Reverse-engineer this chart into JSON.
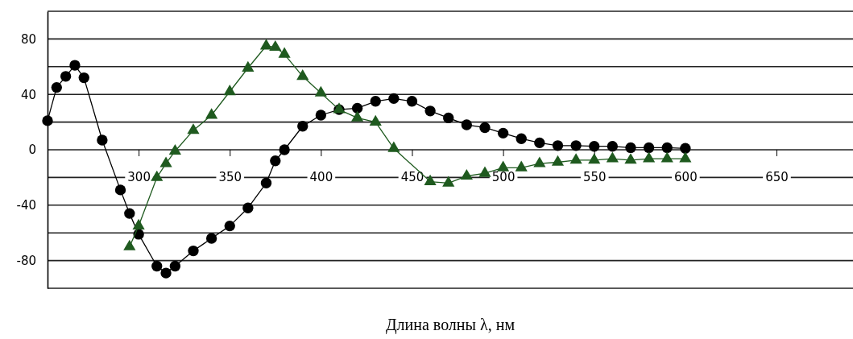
{
  "chart_data": {
    "type": "line",
    "xlabel": "Длина волны λ, нм",
    "xlim": [
      250,
      692
    ],
    "ylim": [
      -100,
      100
    ],
    "xticks": [
      300,
      350,
      400,
      450,
      500,
      550,
      600,
      650
    ],
    "yticks": [
      {
        "value": -100,
        "label": null
      },
      {
        "value": -80,
        "label": "-80"
      },
      {
        "value": -60,
        "label": null
      },
      {
        "value": -40,
        "label": "-40"
      },
      {
        "value": -20,
        "label": null
      },
      0,
      {
        "value": 20,
        "label": null
      },
      40,
      {
        "value": 60,
        "label": null
      },
      80,
      {
        "value": 100,
        "label": null
      }
    ],
    "grid": "y",
    "line_style": "solid",
    "series": [
      {
        "color": "#000000",
        "marker": "circle",
        "x": [
          250,
          255,
          260,
          265,
          270,
          280,
          290,
          295,
          300,
          310,
          315,
          320,
          330,
          340,
          350,
          360,
          370,
          375,
          380,
          390,
          400,
          410,
          420,
          430,
          440,
          450,
          460,
          470,
          480,
          490,
          500,
          510,
          520,
          530,
          540,
          550,
          560,
          570,
          580,
          590,
          600
        ],
        "values": [
          21,
          45,
          53,
          61,
          52,
          7,
          -29,
          -46,
          -61,
          -84,
          -89,
          -84,
          -73,
          -64,
          -55,
          -42,
          -24,
          -8,
          0,
          17,
          25,
          29,
          30,
          35,
          37,
          35,
          28,
          23,
          18,
          16,
          12,
          8,
          5,
          3,
          3,
          2.5,
          2.5,
          1.5,
          1.5,
          1.5,
          1
        ]
      },
      {
        "color": "#1f5a1f",
        "marker": "triangle",
        "x": [
          295,
          300,
          310,
          315,
          320,
          330,
          340,
          350,
          360,
          370,
          375,
          380,
          390,
          400,
          410,
          420,
          430,
          440,
          460,
          470,
          480,
          490,
          500,
          510,
          520,
          530,
          540,
          550,
          560,
          570,
          580,
          590,
          600
        ],
        "values": [
          -70,
          -55,
          -20,
          -10,
          -1,
          14,
          25,
          42,
          59,
          75,
          74,
          69,
          53,
          41,
          29,
          23,
          20,
          1,
          -23,
          -24,
          -19,
          -17,
          -13,
          -13,
          -10,
          -9,
          -7.5,
          -7.5,
          -6.5,
          -7.5,
          -6.5,
          -6.5,
          -6.5
        ]
      }
    ]
  }
}
